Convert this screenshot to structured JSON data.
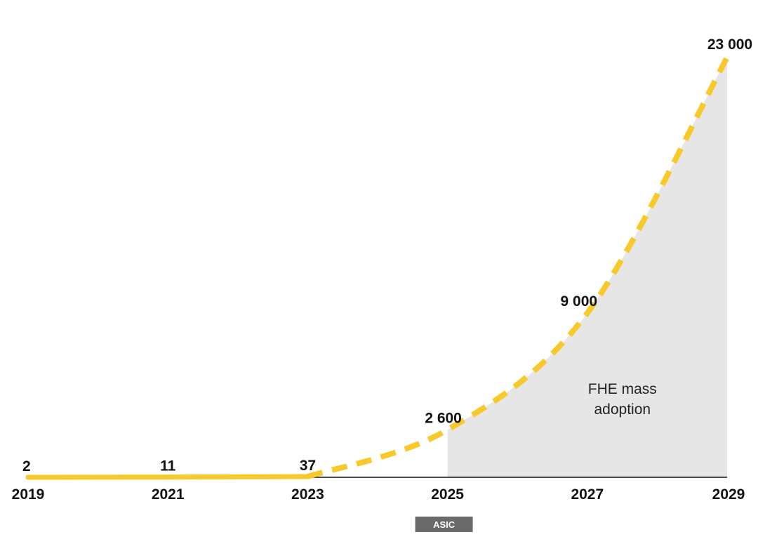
{
  "chart_data": {
    "type": "area",
    "title": "",
    "xlabel": "",
    "ylabel": "",
    "x": [
      2019,
      2021,
      2023,
      2025,
      2027,
      2029
    ],
    "x_tick_labels": [
      "2019",
      "2021",
      "2023",
      "2025",
      "2027",
      "2029"
    ],
    "values": [
      2,
      11,
      37,
      2600,
      9000,
      23000
    ],
    "data_labels": [
      "2",
      "11",
      "37",
      "2 600",
      "9 000",
      "23 000"
    ],
    "ylim": [
      0,
      23000
    ],
    "grid": false,
    "legend": "none",
    "actual_range": [
      2019,
      2023
    ],
    "projected_range": [
      2023,
      2029
    ],
    "shaded_region": {
      "x": [
        2025,
        2029
      ],
      "label_lines": [
        "FHE mass",
        "adoption"
      ]
    },
    "badge": {
      "x": 2025,
      "label": "ASIC"
    },
    "colors": {
      "line": "#f7c92b",
      "shade": "#e6e6e6",
      "axis": "#111111",
      "badge": "#6a6a6a",
      "text": "#111111"
    }
  }
}
